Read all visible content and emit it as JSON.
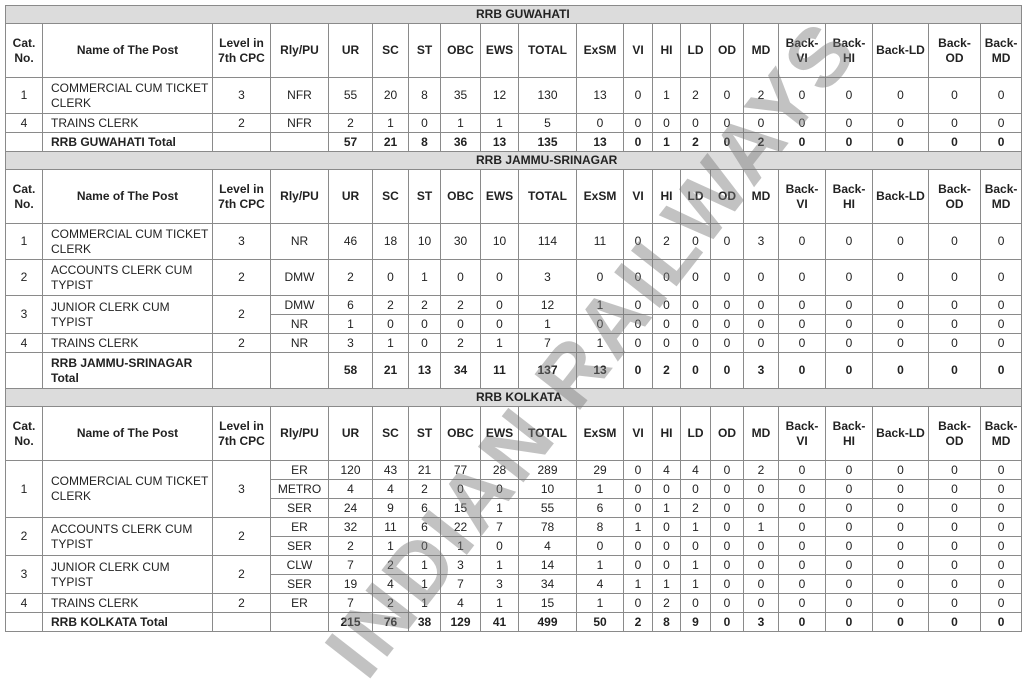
{
  "headers": [
    "Cat. No.",
    "Name of The Post",
    "Level in 7th CPC",
    "Rly/PU",
    "UR",
    "SC",
    "ST",
    "OBC",
    "EWS",
    "TOTAL",
    "ExSM",
    "VI",
    "HI",
    "LD",
    "OD",
    "MD",
    "Back-VI",
    "Back-HI",
    "Back-LD",
    "Back-OD",
    "Back-MD"
  ],
  "watermark": "INDIAN RAILWAYS",
  "sections": [
    {
      "title": "RRB GUWAHATI",
      "total_label": "RRB GUWAHATI Total",
      "totals": [
        57,
        21,
        8,
        36,
        13,
        135,
        13,
        0,
        1,
        2,
        0,
        2,
        0,
        0,
        0,
        0,
        0
      ],
      "posts": [
        {
          "cat": "1",
          "name": "COMMERCIAL CUM TICKET CLERK",
          "level": "3",
          "entries": [
            {
              "rly": "NFR",
              "values": [
                55,
                20,
                8,
                35,
                12,
                130,
                13,
                0,
                1,
                2,
                0,
                2,
                0,
                0,
                0,
                0,
                0
              ]
            }
          ]
        },
        {
          "cat": "4",
          "name": "TRAINS CLERK",
          "level": "2",
          "entries": [
            {
              "rly": "NFR",
              "values": [
                2,
                1,
                0,
                1,
                1,
                5,
                0,
                0,
                0,
                0,
                0,
                0,
                0,
                0,
                0,
                0,
                0
              ]
            }
          ]
        }
      ]
    },
    {
      "title": "RRB JAMMU-SRINAGAR",
      "total_label": "RRB JAMMU-SRINAGAR Total",
      "totals": [
        58,
        21,
        13,
        34,
        11,
        137,
        13,
        0,
        2,
        0,
        0,
        3,
        0,
        0,
        0,
        0,
        0
      ],
      "posts": [
        {
          "cat": "1",
          "name": "COMMERCIAL CUM TICKET CLERK",
          "level": "3",
          "entries": [
            {
              "rly": "NR",
              "values": [
                46,
                18,
                10,
                30,
                10,
                114,
                11,
                0,
                2,
                0,
                0,
                3,
                0,
                0,
                0,
                0,
                0
              ]
            }
          ]
        },
        {
          "cat": "2",
          "name": "ACCOUNTS CLERK CUM TYPIST",
          "level": "2",
          "entries": [
            {
              "rly": "DMW",
              "values": [
                2,
                0,
                1,
                0,
                0,
                3,
                0,
                0,
                0,
                0,
                0,
                0,
                0,
                0,
                0,
                0,
                0
              ]
            }
          ]
        },
        {
          "cat": "3",
          "name": "JUNIOR CLERK CUM TYPIST",
          "level": "2",
          "entries": [
            {
              "rly": "DMW",
              "values": [
                6,
                2,
                2,
                2,
                0,
                12,
                1,
                0,
                0,
                0,
                0,
                0,
                0,
                0,
                0,
                0,
                0
              ]
            },
            {
              "rly": "NR",
              "values": [
                1,
                0,
                0,
                0,
                0,
                1,
                0,
                0,
                0,
                0,
                0,
                0,
                0,
                0,
                0,
                0,
                0
              ]
            }
          ]
        },
        {
          "cat": "4",
          "name": "TRAINS CLERK",
          "level": "2",
          "entries": [
            {
              "rly": "NR",
              "values": [
                3,
                1,
                0,
                2,
                1,
                7,
                1,
                0,
                0,
                0,
                0,
                0,
                0,
                0,
                0,
                0,
                0
              ]
            }
          ]
        }
      ]
    },
    {
      "title": "RRB KOLKATA",
      "total_label": "RRB KOLKATA Total",
      "totals": [
        215,
        76,
        38,
        129,
        41,
        499,
        50,
        2,
        8,
        9,
        0,
        3,
        0,
        0,
        0,
        0,
        0
      ],
      "posts": [
        {
          "cat": "1",
          "name": "COMMERCIAL CUM TICKET CLERK",
          "level": "3",
          "entries": [
            {
              "rly": "ER",
              "values": [
                120,
                43,
                21,
                77,
                28,
                289,
                29,
                0,
                4,
                4,
                0,
                2,
                0,
                0,
                0,
                0,
                0
              ]
            },
            {
              "rly": "METRO",
              "values": [
                4,
                4,
                2,
                0,
                0,
                10,
                1,
                0,
                0,
                0,
                0,
                0,
                0,
                0,
                0,
                0,
                0
              ]
            },
            {
              "rly": "SER",
              "values": [
                24,
                9,
                6,
                15,
                1,
                55,
                6,
                0,
                1,
                2,
                0,
                0,
                0,
                0,
                0,
                0,
                0
              ]
            }
          ]
        },
        {
          "cat": "2",
          "name": "ACCOUNTS CLERK CUM TYPIST",
          "level": "2",
          "entries": [
            {
              "rly": "ER",
              "values": [
                32,
                11,
                6,
                22,
                7,
                78,
                8,
                1,
                0,
                1,
                0,
                1,
                0,
                0,
                0,
                0,
                0
              ]
            },
            {
              "rly": "SER",
              "values": [
                2,
                1,
                0,
                1,
                0,
                4,
                0,
                0,
                0,
                0,
                0,
                0,
                0,
                0,
                0,
                0,
                0
              ]
            }
          ]
        },
        {
          "cat": "3",
          "name": "JUNIOR CLERK CUM TYPIST",
          "level": "2",
          "entries": [
            {
              "rly": "CLW",
              "values": [
                7,
                2,
                1,
                3,
                1,
                14,
                1,
                0,
                0,
                1,
                0,
                0,
                0,
                0,
                0,
                0,
                0
              ]
            },
            {
              "rly": "SER",
              "values": [
                19,
                4,
                1,
                7,
                3,
                34,
                4,
                1,
                1,
                1,
                0,
                0,
                0,
                0,
                0,
                0,
                0
              ]
            }
          ]
        },
        {
          "cat": "4",
          "name": "TRAINS CLERK",
          "level": "2",
          "entries": [
            {
              "rly": "ER",
              "values": [
                7,
                2,
                1,
                4,
                1,
                15,
                1,
                0,
                2,
                0,
                0,
                0,
                0,
                0,
                0,
                0,
                0
              ]
            }
          ]
        }
      ]
    }
  ]
}
